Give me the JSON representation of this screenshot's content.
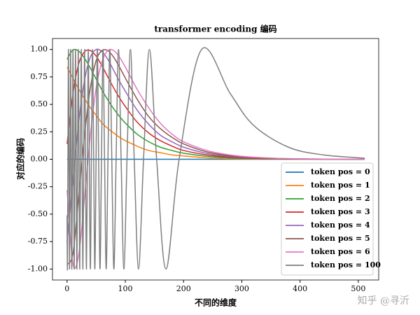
{
  "chart_data": {
    "type": "line",
    "title": "transformer encoding 编码",
    "x_label": "不同的维度",
    "y_label": "对应的编码",
    "watermark": "知乎 @寻沂",
    "xlim": [
      -25,
      535
    ],
    "ylim": [
      -1.1,
      1.1
    ],
    "xticks": [
      0,
      100,
      200,
      300,
      400,
      500
    ],
    "yticks": [
      {
        "value": -1,
        "label": "-1.00"
      },
      {
        "value": -0.75,
        "label": "-0.75"
      },
      {
        "value": -0.5,
        "label": "-0.50"
      },
      {
        "value": -0.25,
        "label": "-0.25"
      },
      {
        "value": 0,
        "label": "0.00"
      },
      {
        "value": 0.25,
        "label": "0.25"
      },
      {
        "value": 0.5,
        "label": "0.50"
      },
      {
        "value": 0.75,
        "label": "0.75"
      },
      {
        "value": 1,
        "label": "1.00"
      }
    ],
    "legend": "lower right",
    "series": [
      {
        "name": "token pos = 0",
        "color": "#1f77b4",
        "x": [
          0,
          511
        ],
        "values": [
          0,
          0
        ]
      },
      {
        "name": "token pos = 1",
        "color": "#ff7f0e",
        "x": [
          0,
          10,
          20,
          30,
          40,
          50,
          60,
          70,
          80,
          90,
          100,
          120,
          140,
          160,
          180,
          200,
          240,
          280,
          320,
          380,
          440,
          511
        ],
        "values": [
          0.84,
          0.74,
          0.64,
          0.55,
          0.47,
          0.4,
          0.33,
          0.28,
          0.24,
          0.2,
          0.17,
          0.12,
          0.08,
          0.06,
          0.04,
          0.03,
          0.013,
          0.006,
          0.003,
          0.001,
          0,
          0
        ]
      },
      {
        "name": "token pos = 2",
        "color": "#2ca02c",
        "x": [
          0,
          10,
          20,
          30,
          40,
          50,
          60,
          70,
          80,
          90,
          100,
          120,
          140,
          160,
          180,
          200,
          240,
          280,
          320,
          380,
          440,
          511
        ],
        "values": [
          0.91,
          0.995,
          0.985,
          0.92,
          0.83,
          0.73,
          0.63,
          0.54,
          0.46,
          0.39,
          0.33,
          0.23,
          0.16,
          0.11,
          0.08,
          0.055,
          0.027,
          0.013,
          0.006,
          0.002,
          0.001,
          0
        ]
      },
      {
        "name": "token pos = 3",
        "color": "#d62728",
        "x": [
          0,
          10,
          20,
          30,
          40,
          50,
          60,
          70,
          80,
          90,
          100,
          120,
          140,
          160,
          180,
          200,
          240,
          280,
          320,
          380,
          440,
          511
        ],
        "values": [
          0.14,
          0.59,
          0.87,
          0.98,
          0.99,
          0.94,
          0.85,
          0.75,
          0.65,
          0.56,
          0.48,
          0.34,
          0.24,
          0.17,
          0.12,
          0.08,
          0.04,
          0.019,
          0.009,
          0.003,
          0.001,
          0
        ]
      },
      {
        "name": "token pos = 4",
        "color": "#9467bd",
        "x": [
          0,
          10,
          20,
          30,
          40,
          50,
          60,
          70,
          80,
          90,
          100,
          120,
          140,
          160,
          180,
          200,
          240,
          280,
          320,
          380,
          440,
          511
        ],
        "values": [
          -0.76,
          -0.2,
          0.34,
          0.72,
          0.93,
          1.0,
          0.98,
          0.91,
          0.81,
          0.71,
          0.62,
          0.45,
          0.32,
          0.22,
          0.16,
          0.11,
          0.053,
          0.026,
          0.013,
          0.004,
          0.001,
          0
        ]
      },
      {
        "name": "token pos = 5",
        "color": "#8c564b",
        "x": [
          0,
          10,
          20,
          30,
          40,
          50,
          60,
          70,
          80,
          90,
          100,
          120,
          140,
          160,
          180,
          200,
          240,
          280,
          320,
          380,
          440,
          511
        ],
        "values": [
          -0.96,
          -0.86,
          -0.34,
          0.22,
          0.65,
          0.9,
          0.99,
          0.99,
          0.93,
          0.84,
          0.74,
          0.55,
          0.39,
          0.28,
          0.2,
          0.14,
          0.067,
          0.032,
          0.016,
          0.005,
          0.002,
          0.001
        ]
      },
      {
        "name": "token pos = 6",
        "color": "#e377c2",
        "x": [
          0,
          10,
          20,
          30,
          40,
          50,
          60,
          70,
          80,
          90,
          100,
          120,
          140,
          160,
          180,
          200,
          240,
          280,
          320,
          380,
          440,
          511
        ],
        "values": [
          -0.28,
          -0.95,
          -0.87,
          -0.35,
          0.22,
          0.65,
          0.89,
          0.99,
          0.99,
          0.93,
          0.84,
          0.64,
          0.47,
          0.33,
          0.23,
          0.16,
          0.08,
          0.039,
          0.019,
          0.006,
          0.002,
          0.001
        ]
      },
      {
        "name": "token pos = 100",
        "color": "#7f7f7f",
        "x": [
          0,
          0.6,
          1.5,
          2.4,
          3.3,
          4.2,
          5.2,
          6.1,
          7.1,
          8.1,
          9.2,
          10.2,
          11.2,
          12.3,
          13.4,
          14.6,
          15.7,
          16.9,
          18.1,
          19.3,
          20.5,
          21.8,
          23.1,
          24.5,
          25.8,
          27.2,
          28.7,
          30.2,
          31.7,
          33.3,
          34.9,
          36.5,
          38.2,
          40.0,
          41.8,
          43.7,
          45.7,
          47.7,
          49.8,
          52.0,
          54.2,
          56.6,
          59.1,
          61.7,
          64.4,
          67.2,
          70.2,
          73.4,
          76.8,
          80.4,
          84.2,
          88.3,
          92.8,
          97.6,
          102.9,
          108.8,
          115.3,
          122.7,
          131.3,
          141.4,
          153.8,
          169.8,
          192.4,
          230.9,
          280,
          320,
          380,
          440,
          511
        ],
        "values": [
          -0.51,
          -1,
          0,
          1,
          0,
          -1,
          0,
          1,
          0,
          -1,
          0,
          1,
          0,
          -1,
          0,
          1,
          0,
          -1,
          0,
          1,
          0,
          -1,
          0,
          1,
          0,
          -1,
          0,
          1,
          0,
          -1,
          0,
          1,
          0,
          -1,
          0,
          1,
          0,
          -1,
          0,
          1,
          0,
          -1,
          0,
          1,
          0,
          -1,
          0,
          1,
          0,
          -1,
          0,
          1,
          0,
          -1,
          0,
          1,
          0,
          -1,
          0,
          1,
          0,
          -1,
          0,
          1,
          0.6,
          0.31,
          0.11,
          0.04,
          0.01
        ]
      }
    ]
  }
}
